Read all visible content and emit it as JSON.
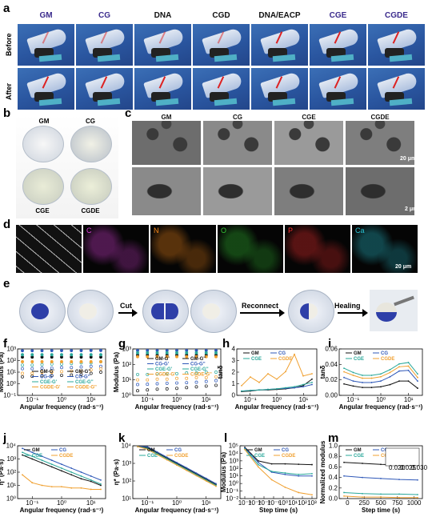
{
  "panels": {
    "a": "a",
    "b": "b",
    "c": "c",
    "d": "d",
    "e": "e",
    "f": "f",
    "g": "g",
    "h": "h",
    "i": "i",
    "j": "j",
    "k": "k",
    "l": "l",
    "m": "m"
  },
  "a": {
    "headers": [
      "GM",
      "CG",
      "DNA",
      "CGD",
      "DNA/EACP",
      "CGE",
      "CGDE"
    ],
    "header_colors": [
      "#3a2a8c",
      "#3a2a8c",
      "#111111",
      "#111111",
      "#111111",
      "#3a2a8c",
      "#3a2a8c"
    ],
    "rows": [
      "Before",
      "After"
    ]
  },
  "b": {
    "labels": [
      "GM",
      "CG",
      "CGE",
      "CGDE"
    ]
  },
  "c": {
    "labels": [
      "GM",
      "CG",
      "CGE",
      "CGDE"
    ],
    "scale_top": "20 μm",
    "scale_bottom": "2 μm"
  },
  "d": {
    "labels": [
      "C",
      "N",
      "O",
      "P",
      "Ca"
    ],
    "label_colors": [
      "#e040e0",
      "#ff8c1a",
      "#34c934",
      "#ff3030",
      "#29c6d6"
    ],
    "scale": "20 μm"
  },
  "e": {
    "steps": [
      "Cut",
      "Reconnect",
      "Healing"
    ]
  },
  "chart_data": [
    {
      "panel": "f",
      "type": "scatter",
      "xlabel": "Angular frequency (rad·s⁻¹)",
      "ylabel": "Modulus (Pa)",
      "xticks": [
        "10⁻¹",
        "10⁰",
        "10¹"
      ],
      "yticks": [
        "10⁻¹",
        "10⁰",
        "10¹",
        "10²",
        "10³"
      ],
      "legend": [
        "GM-G'",
        "GM-G''",
        "CG-G'",
        "CG-G''",
        "CGE-G'",
        "CGE-G''",
        "CGDE-G'",
        "CGDE-G''"
      ],
      "series": [
        {
          "name": "GM-G'",
          "color": "#111111",
          "values": [
            2.3,
            2.3,
            2.3,
            2.3,
            2.3,
            2.3,
            2.3,
            2.3,
            2.3
          ]
        },
        {
          "name": "GM-G''",
          "color": "#111111",
          "values": [
            0.6,
            0.65,
            0.7,
            0.7,
            0.72,
            0.75,
            0.8,
            0.9,
            1.0
          ]
        },
        {
          "name": "CG-G'",
          "color": "#2f58b8",
          "values": [
            2.85,
            2.85,
            2.85,
            2.86,
            2.86,
            2.86,
            2.86,
            2.87,
            2.87
          ]
        },
        {
          "name": "CG-G''",
          "color": "#2f58b8",
          "values": [
            1.3,
            1.3,
            1.35,
            1.35,
            1.4,
            1.4,
            1.45,
            1.5,
            1.5
          ]
        },
        {
          "name": "CGE-G'",
          "color": "#2aa89a",
          "values": [
            2.5,
            2.5,
            2.5,
            2.5,
            2.5,
            2.5,
            2.5,
            2.5,
            2.5
          ]
        },
        {
          "name": "CGE-G''",
          "color": "#2aa89a",
          "values": [
            1.6,
            1.6,
            1.65,
            1.7,
            1.7,
            1.75,
            1.8,
            1.8,
            1.9
          ]
        },
        {
          "name": "CGDE-G'",
          "color": "#f0a030",
          "values": [
            1.9,
            1.9,
            1.9,
            1.9,
            1.9,
            1.9,
            1.9,
            1.9,
            1.9
          ]
        },
        {
          "name": "CGDE-G''",
          "color": "#f0a030",
          "values": [
            0.9,
            0.9,
            1.0,
            1.0,
            1.05,
            1.1,
            1.1,
            1.2,
            1.3
          ]
        }
      ]
    },
    {
      "panel": "g",
      "type": "scatter",
      "xlabel": "Angular frequency (rad·s⁻¹)",
      "ylabel": "Modulus (Pa)",
      "xticks": [
        "10⁻¹",
        "10⁰",
        "10¹"
      ],
      "yticks": [
        "10⁰",
        "10¹",
        "10²",
        "10³"
      ],
      "legend": [
        "GM-G'",
        "GM-G''",
        "CG-G'",
        "CG-G''",
        "CGE-G'",
        "CGE-G''",
        "CGDE-G'",
        "CGDE-G''"
      ],
      "series": [
        {
          "name": "GM-G'",
          "color": "#111111",
          "values": [
            2.6,
            2.6,
            2.6,
            2.6,
            2.6,
            2.6,
            2.6,
            2.6,
            2.6
          ]
        },
        {
          "name": "GM-G''",
          "color": "#111111",
          "values": [
            0.3,
            0.35,
            0.4,
            0.42,
            0.45,
            0.5,
            0.55,
            0.6,
            0.65
          ]
        },
        {
          "name": "CG-G'",
          "color": "#2f58b8",
          "values": [
            2.9,
            2.9,
            2.9,
            2.9,
            2.9,
            2.9,
            2.9,
            2.9,
            2.9
          ]
        },
        {
          "name": "CG-G''",
          "color": "#2f58b8",
          "values": [
            0.7,
            0.72,
            0.75,
            0.78,
            0.8,
            0.82,
            0.85,
            0.9,
            0.95
          ]
        },
        {
          "name": "CGE-G'",
          "color": "#2aa89a",
          "values": [
            2.75,
            2.75,
            2.75,
            2.75,
            2.75,
            2.75,
            2.75,
            2.75,
            2.75
          ]
        },
        {
          "name": "CGE-G''",
          "color": "#2aa89a",
          "values": [
            1.35,
            1.35,
            1.4,
            1.4,
            1.4,
            1.45,
            1.45,
            1.5,
            1.5
          ]
        },
        {
          "name": "CGDE-G'",
          "color": "#f0a030",
          "values": [
            2.5,
            2.5,
            2.5,
            2.5,
            2.5,
            2.5,
            2.5,
            2.5,
            2.5
          ]
        },
        {
          "name": "CGDE-G''",
          "color": "#f0a030",
          "values": [
            1.0,
            1.0,
            1.05,
            1.05,
            1.1,
            1.1,
            1.15,
            1.15,
            1.2
          ]
        }
      ]
    },
    {
      "panel": "h",
      "type": "line",
      "xlabel": "Angular frequency (rad·s⁻¹)",
      "ylabel": "tanδ",
      "xticks": [
        "10⁻¹",
        "10⁰",
        "10¹"
      ],
      "yticks": [
        "0",
        "1",
        "2",
        "3",
        "4"
      ],
      "ylim": [
        0,
        4.3
      ],
      "legend": [
        "GM",
        "CG",
        "CGE",
        "CGDE"
      ],
      "series": [
        {
          "name": "GM",
          "color": "#111111",
          "values": [
            0.35,
            0.4,
            0.5,
            0.5,
            0.55,
            0.6,
            0.7,
            0.9,
            1.5
          ]
        },
        {
          "name": "CG",
          "color": "#2f58b8",
          "values": [
            0.4,
            0.45,
            0.5,
            0.55,
            0.6,
            0.65,
            0.7,
            0.8,
            1.0
          ]
        },
        {
          "name": "CGE",
          "color": "#2aa89a",
          "values": [
            0.4,
            0.45,
            0.5,
            0.55,
            0.6,
            0.7,
            0.8,
            1.0,
            1.2
          ]
        },
        {
          "name": "CGDE",
          "color": "#f0a030",
          "values": [
            0.9,
            1.7,
            1.2,
            2.0,
            1.5,
            2.2,
            3.8,
            1.8,
            2.0
          ]
        }
      ]
    },
    {
      "panel": "i",
      "type": "line",
      "xlabel": "Angular frequency (rad·s⁻¹)",
      "ylabel": "tanδ",
      "xticks": [
        "10⁻¹",
        "10⁰",
        "10¹"
      ],
      "yticks": [
        "0.00",
        "0.02",
        "0.04",
        "0.06"
      ],
      "ylim": [
        0,
        0.065
      ],
      "legend": [
        "GM",
        "CG",
        "CGE",
        "CGDE"
      ],
      "series": [
        {
          "name": "GM",
          "color": "#111111",
          "values": [
            0.016,
            0.013,
            0.011,
            0.011,
            0.012,
            0.015,
            0.02,
            0.02,
            0.01
          ]
        },
        {
          "name": "CG",
          "color": "#2f58b8",
          "values": [
            0.025,
            0.02,
            0.018,
            0.018,
            0.02,
            0.026,
            0.034,
            0.035,
            0.02
          ]
        },
        {
          "name": "CGE",
          "color": "#2aa89a",
          "values": [
            0.038,
            0.032,
            0.028,
            0.028,
            0.03,
            0.036,
            0.044,
            0.046,
            0.03
          ]
        },
        {
          "name": "CGDE",
          "color": "#f0a030",
          "values": [
            0.033,
            0.028,
            0.024,
            0.024,
            0.026,
            0.032,
            0.04,
            0.041,
            0.025
          ]
        }
      ]
    },
    {
      "panel": "j",
      "type": "line",
      "xlabel": "Angular frequency (rad·s⁻¹)",
      "ylabel": "η* (Pa·s)",
      "xticks": [
        "10⁻¹",
        "10⁰",
        "10¹"
      ],
      "yticks": [
        "10⁰",
        "10¹",
        "10²",
        "10³",
        "10⁴"
      ],
      "legend": [
        "GM",
        "CG",
        "CGE",
        "CGDE"
      ],
      "series": [
        {
          "name": "GM",
          "color": "#111111",
          "values": [
            3.3,
            3.0,
            2.7,
            2.4,
            2.1,
            1.8,
            1.5,
            1.3,
            1.0
          ]
        },
        {
          "name": "CG",
          "color": "#2f58b8",
          "values": [
            3.8,
            3.5,
            3.2,
            2.9,
            2.6,
            2.3,
            2.0,
            1.7,
            1.4
          ]
        },
        {
          "name": "CGE",
          "color": "#2aa89a",
          "values": [
            3.5,
            3.2,
            2.9,
            2.6,
            2.3,
            2.0,
            1.7,
            1.4,
            1.1
          ]
        },
        {
          "name": "CGDE",
          "color": "#f0a030",
          "values": [
            1.8,
            1.2,
            1.0,
            0.9,
            0.9,
            0.8,
            0.8,
            0.7,
            0.7
          ]
        }
      ]
    },
    {
      "panel": "k",
      "type": "line",
      "xlabel": "Angular frequency (rad·s⁻¹)",
      "ylabel": "η* (Pa·s)",
      "xticks": [
        "10⁻¹",
        "10⁰",
        "10¹"
      ],
      "yticks": [
        "10¹",
        "10²",
        "10³",
        "10⁴"
      ],
      "legend": [
        "GM",
        "CG",
        "CGE",
        "CGDE"
      ],
      "series": [
        {
          "name": "GM",
          "color": "#111111",
          "values": [
            4.2,
            3.9,
            3.6,
            3.3,
            3.0,
            2.7,
            2.4,
            2.1,
            1.8
          ]
        },
        {
          "name": "CG",
          "color": "#2f58b8",
          "values": [
            4.25,
            3.95,
            3.65,
            3.35,
            3.05,
            2.75,
            2.45,
            2.15,
            1.85
          ]
        },
        {
          "name": "CGE",
          "color": "#2aa89a",
          "values": [
            4.15,
            3.85,
            3.55,
            3.25,
            2.95,
            2.65,
            2.35,
            2.05,
            1.75
          ]
        },
        {
          "name": "CGDE",
          "color": "#f0a030",
          "values": [
            4.1,
            3.8,
            3.5,
            3.2,
            2.9,
            2.6,
            2.3,
            2.0,
            1.7
          ]
        }
      ]
    },
    {
      "panel": "l",
      "type": "line",
      "xlabel": "Step time (s)",
      "ylabel": "Modulus (Pa)",
      "xticks": [
        "10⁻⁴",
        "10⁻³",
        "10⁻²",
        "10⁻¹",
        "10⁰",
        "10¹",
        "10²",
        "10³"
      ],
      "yticks": [
        "10⁻²",
        "10⁻¹",
        "10⁰",
        "10¹",
        "10²",
        "10³",
        "10⁴",
        "10⁵"
      ],
      "legend": [
        "GM",
        "CG",
        "CGE",
        "CGDE"
      ],
      "series": [
        {
          "name": "GM",
          "color": "#111111",
          "values": [
            4.8,
            3.0,
            2.6,
            2.6,
            2.55,
            2.5
          ]
        },
        {
          "name": "CG",
          "color": "#2f58b8",
          "values": [
            4.7,
            2.8,
            1.5,
            1.2,
            1.0,
            1.0
          ]
        },
        {
          "name": "CGE",
          "color": "#2aa89a",
          "values": [
            4.6,
            2.5,
            1.6,
            1.4,
            1.2,
            1.3
          ]
        },
        {
          "name": "CGDE",
          "color": "#f0a030",
          "values": [
            4.5,
            2.2,
            0.5,
            -0.5,
            -1.2,
            -1.5
          ]
        }
      ]
    },
    {
      "panel": "m",
      "type": "line",
      "xlabel": "Step time (s)",
      "ylabel": "Normalized modulus",
      "xticks": [
        "0",
        "250",
        "500",
        "750",
        "1000"
      ],
      "yticks": [
        "0.0",
        "0.2",
        "0.4",
        "0.6",
        "0.8",
        "1.0"
      ],
      "ylim": [
        0,
        1.05
      ],
      "inset_xticks": [
        "0.020",
        "0.025",
        "0.030"
      ],
      "legend": [
        "GM",
        "CG",
        "CGE",
        "CGDE"
      ],
      "series": [
        {
          "name": "GM",
          "color": "#111111",
          "values": [
            0.72,
            0.7,
            0.68,
            0.67,
            0.66
          ]
        },
        {
          "name": "CG",
          "color": "#2f58b8",
          "values": [
            0.45,
            0.42,
            0.4,
            0.38,
            0.37
          ]
        },
        {
          "name": "CGE",
          "color": "#2aa89a",
          "values": [
            0.12,
            0.1,
            0.09,
            0.09,
            0.08
          ]
        },
        {
          "name": "CGDE",
          "color": "#f0a030",
          "values": [
            0.05,
            0.03,
            0.03,
            0.02,
            0.02
          ]
        }
      ]
    }
  ]
}
